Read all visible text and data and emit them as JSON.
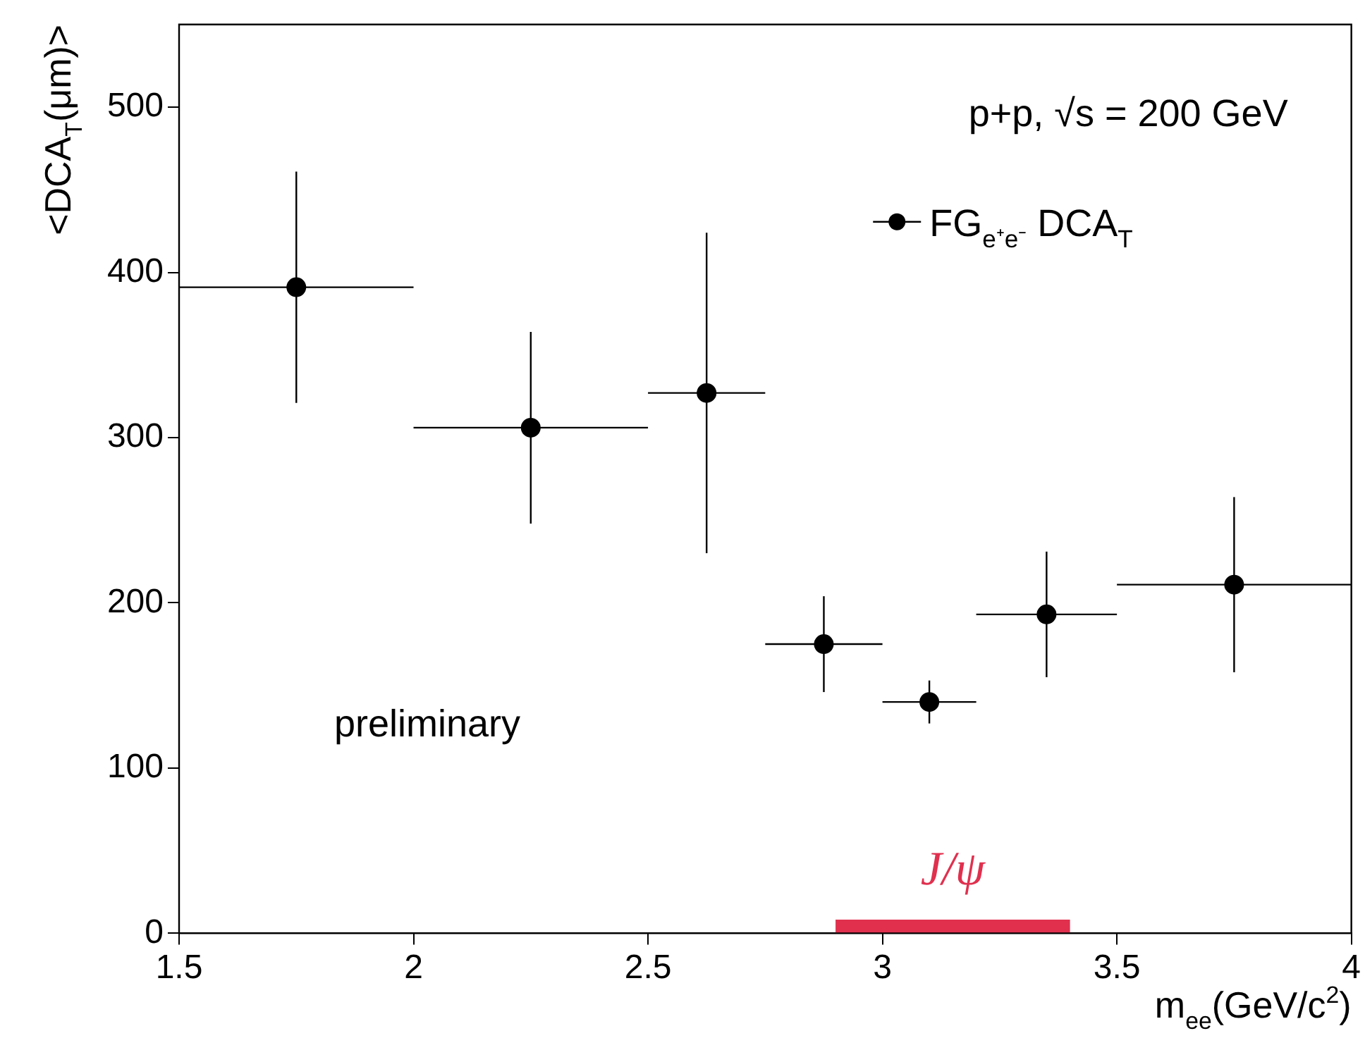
{
  "chart_data": {
    "type": "scatter",
    "xlabel": "m$_{ee}$(GeV/c$^{2}$)",
    "ylabel": "<DCA$_{T}$(μm)>",
    "x": [
      1.75,
      2.25,
      2.625,
      2.875,
      3.1,
      3.35,
      3.75
    ],
    "series": [
      {
        "name": "FG$_{e⁺e⁻}$ DCA$_{T}$",
        "color": "#000000",
        "values": [
          391,
          306,
          327,
          175,
          140,
          193,
          211
        ],
        "errors": [
          70,
          58,
          97,
          29,
          13,
          38,
          53
        ],
        "xerrors": [
          0.25,
          0.25,
          0.125,
          0.125,
          0.1,
          0.15,
          0.25
        ]
      },
      {
        "type": "line",
        "name": "J/ψ",
        "color": "#e0304e",
        "marker": "none",
        "x": [
          2.9,
          3.4
        ],
        "values": [
          4,
          4
        ]
      }
    ],
    "xlim": [
      1.5,
      4
    ],
    "xticks": [
      1.5,
      2,
      2.5,
      3,
      3.5,
      4
    ],
    "ylim": [
      0,
      550
    ],
    "yticks": [
      0,
      100,
      200,
      300,
      400,
      500
    ],
    "grid": false,
    "legend": "top right",
    "marker": "circle",
    "annotations": [
      "p+p, √s = 200 GeV",
      "preliminary"
    ]
  }
}
